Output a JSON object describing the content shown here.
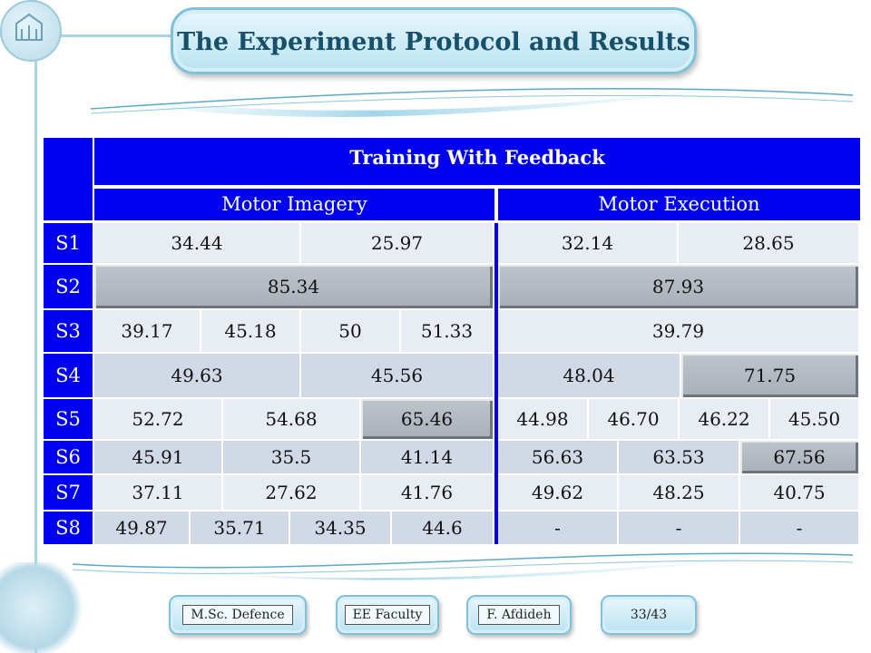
{
  "title": "The Experiment Protocol and Results",
  "table": {
    "header": "Training  With Feedback",
    "groups": [
      "Motor Imagery",
      "Motor Execution"
    ],
    "rows": [
      {
        "label": "S1",
        "mi": [
          "34.44",
          "25.97"
        ],
        "me": [
          "32.14",
          "28.65"
        ]
      },
      {
        "label": "S2",
        "mi": [
          "85.34"
        ],
        "me": [
          "87.93"
        ]
      },
      {
        "label": "S3",
        "mi": [
          "39.17",
          "45.18",
          "50",
          "51.33"
        ],
        "me": [
          "39.79"
        ]
      },
      {
        "label": "S4",
        "mi": [
          "49.63",
          "45.56"
        ],
        "me": [
          "48.04",
          "71.75"
        ]
      },
      {
        "label": "S5",
        "mi": [
          "52.72",
          "54.68",
          "65.46"
        ],
        "me": [
          "44.98",
          "46.70",
          "46.22",
          "45.50"
        ]
      },
      {
        "label": "S6",
        "mi": [
          "45.91",
          "35.5",
          "41.14"
        ],
        "me": [
          "56.63",
          "63.53",
          "67.56"
        ]
      },
      {
        "label": "S7",
        "mi": [
          "37.11",
          "27.62",
          "41.76"
        ],
        "me": [
          "49.62",
          "48.25",
          "40.75"
        ]
      },
      {
        "label": "S8",
        "mi": [
          "49.87",
          "35.71",
          "34.35",
          "44.6"
        ],
        "me": [
          "-",
          "-",
          "-"
        ]
      }
    ]
  },
  "footer": {
    "defence": "M.Sc. Defence",
    "faculty": "EE Faculty",
    "author": "F. Afdideh",
    "page": "33/43"
  },
  "colors": {
    "header_blue": "#0000f0",
    "cell_light": "#e8ecf3",
    "cell_mid": "#d1d8e6",
    "highlight": "#a9afb8"
  }
}
